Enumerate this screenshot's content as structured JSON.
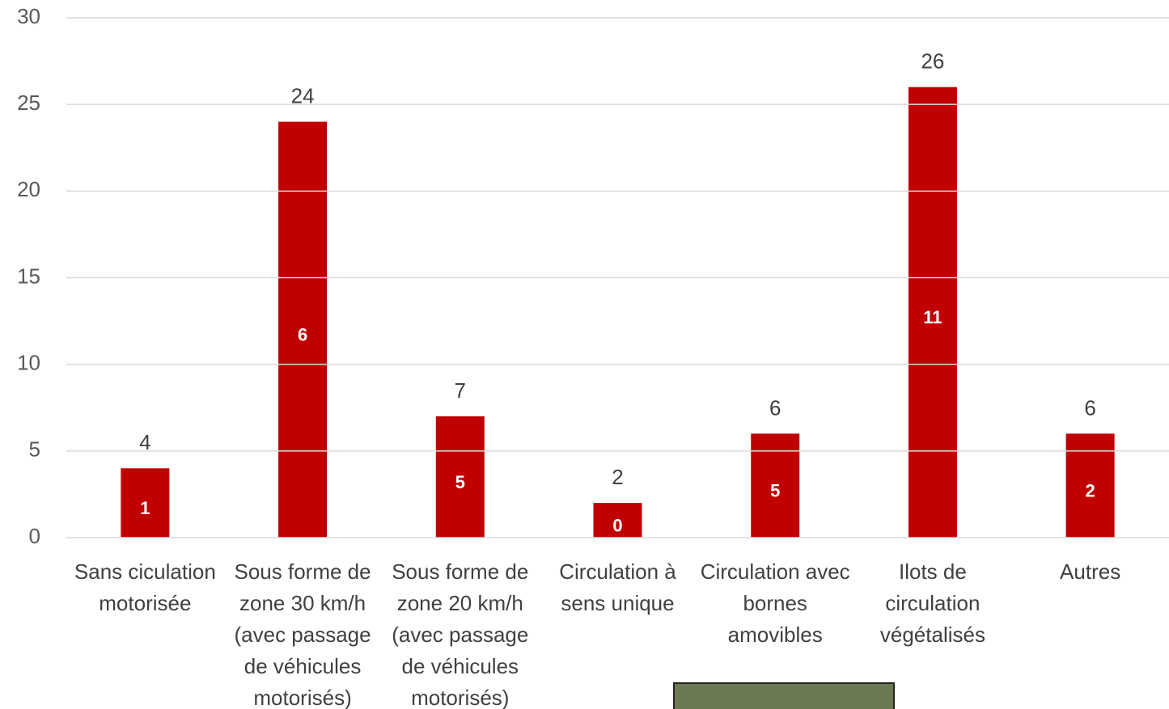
{
  "chart_data": {
    "type": "bar",
    "categories": [
      "Sans ciculation motorisée",
      "Sous forme de zone 30 km/h (avec passage de véhicules motorisés)",
      "Sous forme de zone 20 km/h (avec passage de véhicules motorisés)",
      "Circulation à sens unique",
      "Circulation avec bornes amovibles",
      "Ilots de circulation végétalisés",
      "Autres"
    ],
    "values": [
      4,
      24,
      7,
      2,
      6,
      26,
      6
    ],
    "secondary_values": [
      1,
      6,
      5,
      0,
      5,
      11,
      2
    ],
    "color": "#c00000",
    "ylim": [
      0,
      30
    ],
    "yticks": [
      0,
      5,
      10,
      15,
      20,
      25,
      30
    ],
    "grid": true
  }
}
